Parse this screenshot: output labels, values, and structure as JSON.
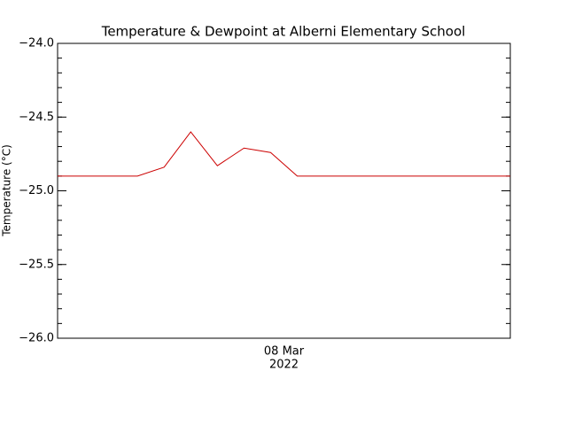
{
  "chart_data": {
    "type": "line",
    "title": "Temperature & Dewpoint at Alberni Elementary School",
    "ylabel": "Temperature (°C)",
    "x_tick_lines": [
      "08 Mar",
      "2022"
    ],
    "categories": [
      null,
      null,
      null,
      null,
      null,
      null,
      null,
      null,
      null,
      null,
      null,
      null,
      null,
      null,
      null,
      null,
      null,
      null
    ],
    "series": [
      {
        "name": "Temperature",
        "color": "#cc0000",
        "values": [
          -24.9,
          -24.9,
          -24.9,
          -24.9,
          -24.84,
          -24.6,
          -24.83,
          -24.71,
          -24.74,
          -24.9,
          -24.9,
          -24.9,
          -24.9,
          -24.9,
          -24.9,
          -24.9,
          -24.9,
          -24.9
        ]
      }
    ],
    "ylim": [
      -26.0,
      -24.0
    ],
    "yticks": [
      {
        "value": -26.0,
        "label": "−26.0"
      },
      {
        "value": -25.5,
        "label": "−25.5"
      },
      {
        "value": -25.0,
        "label": "−25.0"
      },
      {
        "value": -24.5,
        "label": "−24.5"
      },
      {
        "value": -24.0,
        "label": "−24.0"
      }
    ],
    "yminor": 0.1,
    "grid": false
  }
}
